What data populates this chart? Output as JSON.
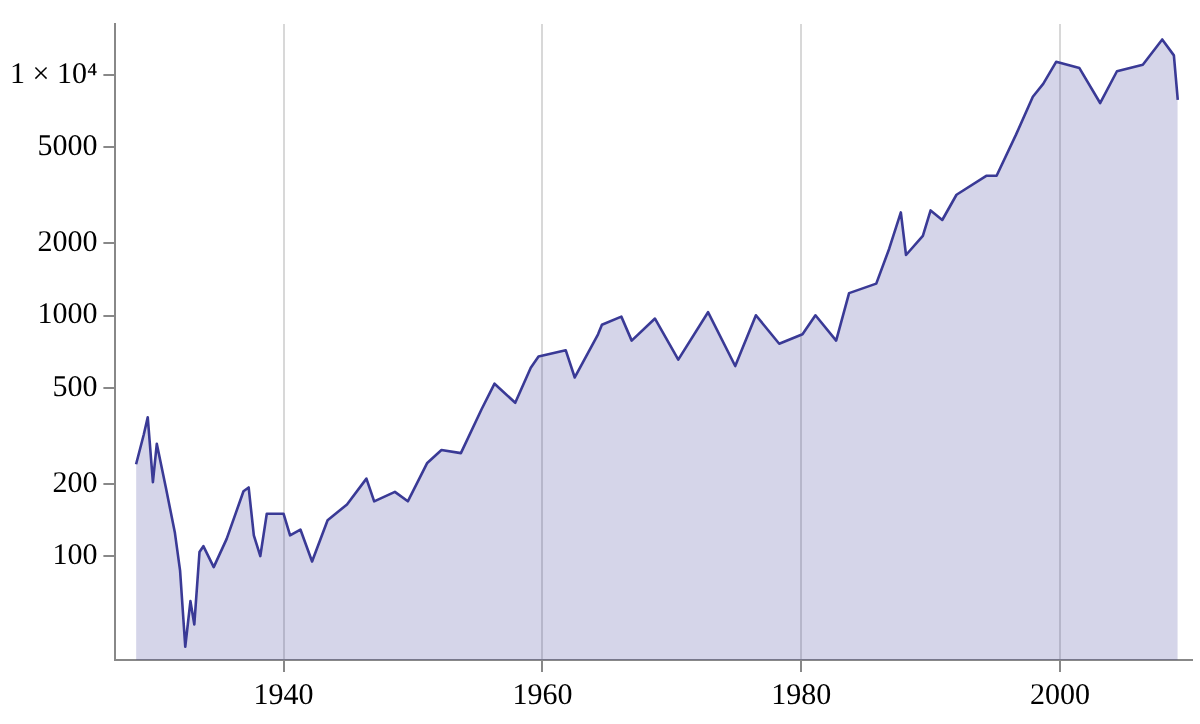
{
  "chart_data": {
    "type": "area",
    "log": "y",
    "grid": "x",
    "xlim": [
      1927,
      2010.2
    ],
    "ylim": [
      37,
      16300
    ],
    "xticks": [
      1940,
      1960,
      1980,
      2000
    ],
    "yticks": [
      100,
      200,
      500,
      1000,
      2000,
      5000,
      {
        "value": 10000,
        "label": "1 × 10⁴"
      }
    ],
    "series": [
      {
        "color": "#3a3a96",
        "x": [
          1928.6,
          1929.2,
          1929.5,
          1929.9,
          1930.2,
          1930.9,
          1931.6,
          1932.0,
          1932.4,
          1932.8,
          1933.1,
          1933.5,
          1933.8,
          1934.6,
          1935.6,
          1936.9,
          1937.3,
          1937.7,
          1938.2,
          1938.7,
          1940.0,
          1940.5,
          1941.3,
          1942.2,
          1943.4,
          1944.9,
          1946.4,
          1947.0,
          1948.6,
          1949.6,
          1951.1,
          1952.2,
          1953.7,
          1955.3,
          1956.3,
          1957.9,
          1959.1,
          1959.7,
          1961.8,
          1962.5,
          1964.3,
          1964.6,
          1966.1,
          1966.9,
          1968.7,
          1970.5,
          1972.8,
          1974.9,
          1976.5,
          1978.3,
          1980.1,
          1981.1,
          1982.7,
          1983.7,
          1985.8,
          1986.8,
          1987.7,
          1988.1,
          1989.4,
          1990.0,
          1990.9,
          1992.0,
          1994.3,
          1995.1,
          1996.6,
          1997.9,
          1998.7,
          1999.7,
          2001.5,
          2003.1,
          2004.4,
          2006.4,
          2007.9,
          2008.8,
          2009.1
        ],
        "values": [
          241,
          321,
          378,
          203,
          293,
          193,
          125,
          87,
          42,
          65,
          52,
          104,
          110,
          90,
          118,
          186,
          193,
          122,
          100,
          150,
          150,
          122,
          129,
          95,
          141,
          164,
          210,
          169,
          185,
          169,
          244,
          276,
          268,
          408,
          521,
          434,
          607,
          676,
          718,
          553,
          836,
          916,
          990,
          787,
          972,
          656,
          1033,
          617,
          1003,
          764,
          836,
          1003,
          787,
          1240,
          1358,
          1897,
          2686,
          1786,
          2143,
          2737,
          2497,
          3179,
          3811,
          3811,
          5653,
          8123,
          9190,
          11350,
          10690,
          7650,
          10370,
          11030,
          14060,
          12070,
          7890
        ]
      }
    ]
  }
}
